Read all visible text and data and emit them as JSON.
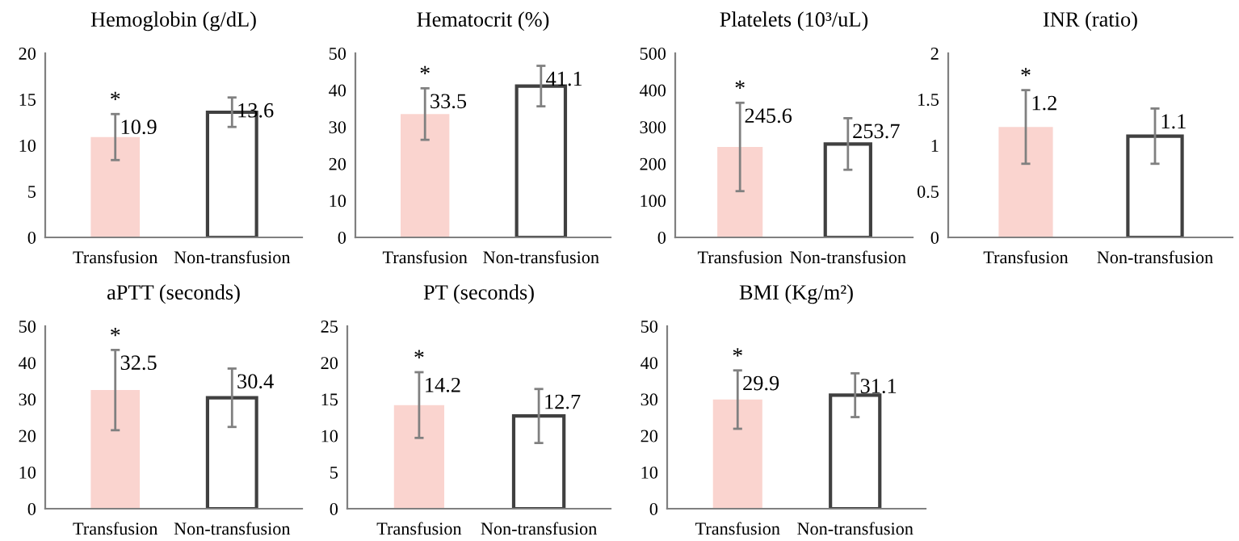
{
  "chart_data": [
    {
      "type": "bar",
      "title": "Hemoglobin (g/dL)",
      "categories": [
        "Transfusion",
        "Non-transfusion"
      ],
      "values": [
        10.9,
        13.6
      ],
      "errors": [
        2.5,
        1.6
      ],
      "colors": [
        "#fad4cf",
        "#ffffff"
      ],
      "ylim": [
        0,
        20
      ],
      "yticks": [
        0,
        5,
        10,
        15,
        20
      ],
      "data_labels": true,
      "grid": false,
      "legend": false,
      "annotations": [
        "*"
      ]
    },
    {
      "type": "bar",
      "title": "Hematocrit (%)",
      "categories": [
        "Transfusion",
        "Non-transfusion"
      ],
      "values": [
        33.5,
        41.1
      ],
      "errors": [
        7,
        5.5
      ],
      "colors": [
        "#fad4cf",
        "#ffffff"
      ],
      "ylim": [
        0,
        50
      ],
      "yticks": [
        0,
        10,
        20,
        30,
        40,
        50
      ],
      "data_labels": true,
      "grid": false,
      "legend": false,
      "annotations": [
        "*"
      ]
    },
    {
      "type": "bar",
      "title": "Platelets (10³/uL)",
      "categories": [
        "Transfusion",
        "Non-transfusion"
      ],
      "values": [
        245.6,
        253.7
      ],
      "errors": [
        120,
        70
      ],
      "colors": [
        "#fad4cf",
        "#ffffff"
      ],
      "ylim": [
        0,
        500
      ],
      "yticks": [
        0,
        100,
        200,
        300,
        400,
        500
      ],
      "data_labels": true,
      "grid": false,
      "legend": false,
      "annotations": [
        "*"
      ]
    },
    {
      "type": "bar",
      "title": "INR (ratio)",
      "categories": [
        "Transfusion",
        "Non-transfusion"
      ],
      "values": [
        1.2,
        1.1
      ],
      "errors": [
        0.4,
        0.3
      ],
      "colors": [
        "#fad4cf",
        "#ffffff"
      ],
      "ylim": [
        0,
        2
      ],
      "yticks": [
        0,
        0.5,
        1,
        1.5,
        2
      ],
      "data_labels": true,
      "grid": false,
      "legend": false,
      "annotations": [
        "*"
      ]
    },
    {
      "type": "bar",
      "title": "aPTT (seconds)",
      "categories": [
        "Transfusion",
        "Non-transfusion"
      ],
      "values": [
        32.5,
        30.4
      ],
      "errors": [
        11,
        8
      ],
      "colors": [
        "#fad4cf",
        "#ffffff"
      ],
      "ylim": [
        0,
        50
      ],
      "yticks": [
        0,
        10,
        20,
        30,
        40,
        50
      ],
      "data_labels": true,
      "grid": false,
      "legend": false,
      "annotations": [
        "*"
      ]
    },
    {
      "type": "bar",
      "title": "PT (seconds)",
      "categories": [
        "Transfusion",
        "Non-transfusion"
      ],
      "values": [
        14.2,
        12.7
      ],
      "errors": [
        4.5,
        3.7
      ],
      "colors": [
        "#fad4cf",
        "#ffffff"
      ],
      "ylim": [
        0,
        25
      ],
      "yticks": [
        0,
        5,
        10,
        15,
        20,
        25
      ],
      "data_labels": true,
      "grid": false,
      "legend": false,
      "annotations": [
        "*"
      ]
    },
    {
      "type": "bar",
      "title": "BMI (Kg/m²)",
      "categories": [
        "Transfusion",
        "Non-transfusion"
      ],
      "values": [
        29.9,
        31.1
      ],
      "errors": [
        8,
        6
      ],
      "colors": [
        "#fad4cf",
        "#ffffff"
      ],
      "ylim": [
        0,
        50
      ],
      "yticks": [
        0,
        10,
        20,
        30,
        40,
        50
      ],
      "data_labels": true,
      "grid": false,
      "legend": false,
      "annotations": [
        "*"
      ]
    }
  ]
}
